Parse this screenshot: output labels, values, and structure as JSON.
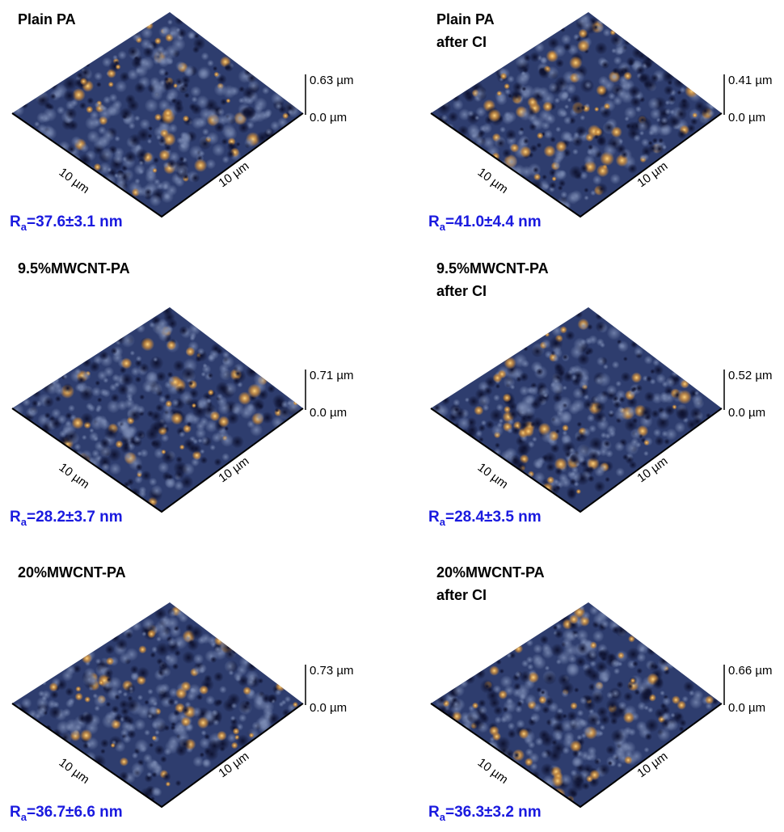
{
  "panels": [
    {
      "title": [
        "Plain PA"
      ],
      "z_max": "0.63 µm",
      "z_min": "0.0 µm",
      "x_label": "10 µm",
      "y_label": "10 µm",
      "ra": {
        "symbol": "R",
        "sub": "a",
        "text": "=37.6±3.1 nm"
      }
    },
    {
      "title": [
        "Plain PA",
        "after CI"
      ],
      "z_max": "0.41 µm",
      "z_min": "0.0 µm",
      "x_label": "10 µm",
      "y_label": "10 µm",
      "ra": {
        "symbol": "R",
        "sub": "a",
        "text": "=41.0±4.4 nm"
      }
    },
    {
      "title": [
        "9.5%MWCNT-PA"
      ],
      "z_max": "0.71 µm",
      "z_min": "0.0 µm",
      "x_label": "10 µm",
      "y_label": "10 µm",
      "ra": {
        "symbol": "R",
        "sub": "a",
        "text": "=28.2±3.7 nm"
      }
    },
    {
      "title": [
        "9.5%MWCNT-PA",
        "after CI"
      ],
      "z_max": "0.52 µm",
      "z_min": "0.0 µm",
      "x_label": "10 µm",
      "y_label": "10 µm",
      "ra": {
        "symbol": "R",
        "sub": "a",
        "text": "=28.4±3.5 nm"
      }
    },
    {
      "title": [
        "20%MWCNT-PA"
      ],
      "z_max": "0.73 µm",
      "z_min": "0.0 µm",
      "x_label": "10 µm",
      "y_label": "10 µm",
      "ra": {
        "symbol": "R",
        "sub": "a",
        "text": "=36.7±6.6 nm"
      }
    },
    {
      "title": [
        "20%MWCNT-PA",
        "after CI"
      ],
      "z_max": "0.66 µm",
      "z_min": "0.0 µm",
      "x_label": "10 µm",
      "y_label": "10 µm",
      "ra": {
        "symbol": "R",
        "sub": "a",
        "text": "=36.3±3.2 nm"
      }
    }
  ]
}
